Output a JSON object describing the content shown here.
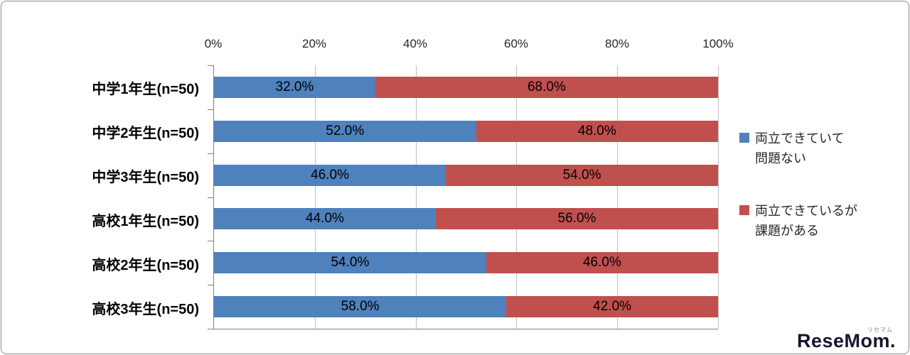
{
  "chart_data": {
    "type": "bar",
    "orientation": "horizontal-stacked-100",
    "title": "",
    "categories": [
      "中学1年生(n=50)",
      "中学2年生(n=50)",
      "中学3年生(n=50)",
      "高校1年生(n=50)",
      "高校2年生(n=50)",
      "高校3年生(n=50)"
    ],
    "series": [
      {
        "name": "両立できていて問題ない",
        "color": "#4F81BD",
        "values": [
          32.0,
          52.0,
          46.0,
          44.0,
          54.0,
          58.0
        ],
        "labels": [
          "32.0%",
          "52.0%",
          "46.0%",
          "44.0%",
          "54.0%",
          "58.0%"
        ]
      },
      {
        "name": "両立できているが課題がある",
        "color": "#C0504D",
        "values": [
          68.0,
          48.0,
          54.0,
          56.0,
          46.0,
          42.0
        ],
        "labels": [
          "68.0%",
          "48.0%",
          "54.0%",
          "56.0%",
          "46.0%",
          "42.0%"
        ]
      }
    ],
    "x_axis": {
      "min": 0,
      "max": 100,
      "ticks": [
        "0%",
        "20%",
        "40%",
        "60%",
        "80%",
        "100%"
      ],
      "position": "top"
    },
    "grid": true,
    "legend": {
      "position": "right",
      "items": [
        {
          "color": "#4F81BD",
          "label_lines": [
            "両立できていて",
            "問題ない"
          ]
        },
        {
          "color": "#C0504D",
          "label_lines": [
            "両立できているが",
            "課題がある"
          ]
        }
      ]
    }
  },
  "watermark": {
    "brand": "ReseMom.",
    "ruby": "リセマム"
  }
}
